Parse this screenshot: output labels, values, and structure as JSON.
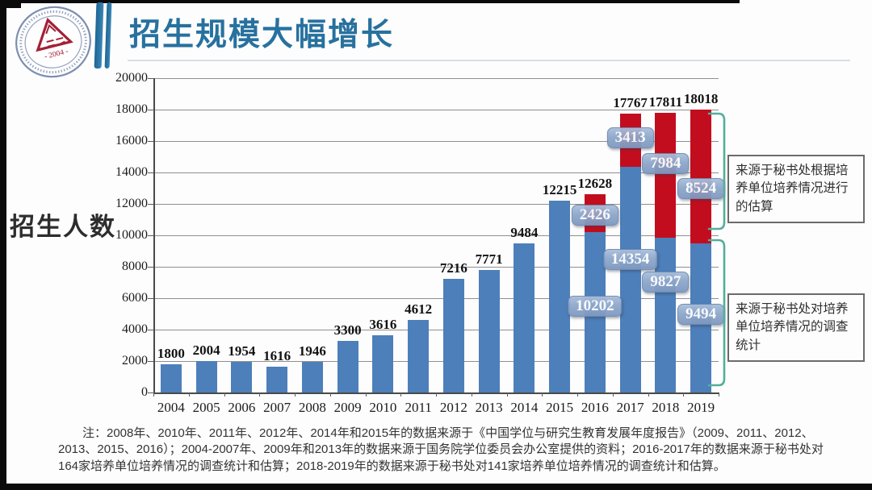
{
  "header": {
    "title": "招生规模大幅增长",
    "logo": {
      "name": "association-seal",
      "year_text": "- 2004 -"
    }
  },
  "chart_data": {
    "type": "bar",
    "stacked": true,
    "title": "招生规模大幅增长",
    "ylabel": "招生人数",
    "ylim": [
      0,
      20000
    ],
    "ytick_step": 2000,
    "grid": true,
    "legend_position": "none",
    "categories": [
      "2004",
      "2005",
      "2006",
      "2007",
      "2008",
      "2009",
      "2010",
      "2011",
      "2012",
      "2013",
      "2014",
      "2015",
      "2016",
      "2017",
      "2018",
      "2019"
    ],
    "series": [
      {
        "name": "来源于秘书处对培养单位培养情况的调查统计",
        "color": "#4d7fba",
        "values": [
          1800,
          2004,
          1954,
          1616,
          1946,
          3300,
          3616,
          4612,
          7216,
          7771,
          9484,
          12215,
          10202,
          14354,
          9827,
          9494
        ]
      },
      {
        "name": "来源于秘书处根据培养单位培养情况进行的估算",
        "color": "#c20d1e",
        "values": [
          0,
          0,
          0,
          0,
          0,
          0,
          0,
          0,
          0,
          0,
          0,
          0,
          2426,
          3413,
          7984,
          8524
        ]
      }
    ],
    "bar_top_labels": [
      "1800",
      "2004",
      "1954",
      "1616",
      "1946",
      "3300",
      "3616",
      "4612",
      "7216",
      "7771",
      "9484",
      "12215",
      "12628",
      "17767",
      "17811",
      "18018"
    ],
    "segment_callouts": [
      {
        "category": "2016",
        "series": 1,
        "value": "2426",
        "at": 11300
      },
      {
        "category": "2017",
        "series": 1,
        "value": "3413",
        "at": 16200
      },
      {
        "category": "2018",
        "series": 1,
        "value": "7984",
        "at": 14550
      },
      {
        "category": "2019",
        "series": 1,
        "value": "8524",
        "at": 12970
      },
      {
        "category": "2016",
        "series": 0,
        "value": "10202",
        "at": 5480
      },
      {
        "category": "2017",
        "series": 0,
        "value": "14354",
        "at": 8460
      },
      {
        "category": "2018",
        "series": 0,
        "value": "9827",
        "at": 7030
      },
      {
        "category": "2019",
        "series": 0,
        "value": "9494",
        "at": 4970
      }
    ]
  },
  "annotations": {
    "estimate_note": "来源于秘书处根据培养单位培养情况进行的估算",
    "survey_note": "来源于秘书处对培养单位培养情况的调查统计"
  },
  "footnote": "注：2008年、2010年、2011年、2012年、2014年和2015年的数据来源于《中国学位与研究生教育发展年度报告》（2009、2011、2012、2013、2015、2016）；2004-2007年、2009年和2013年的数据来源于国务院学位委员会办公室提供的资料；2016-2017年的数据来源于秘书处对164家培养单位培养情况的调查统计和估算；2018-2019年的数据来源于秘书处对141家培养单位培养情况的调查统计和估算。",
  "colors": {
    "title": "#27719f",
    "bar_blue": "#4d7fba",
    "bar_red": "#c20d1e",
    "callout_bg": "#8ea8cb",
    "bracket": "#53ae9c"
  }
}
